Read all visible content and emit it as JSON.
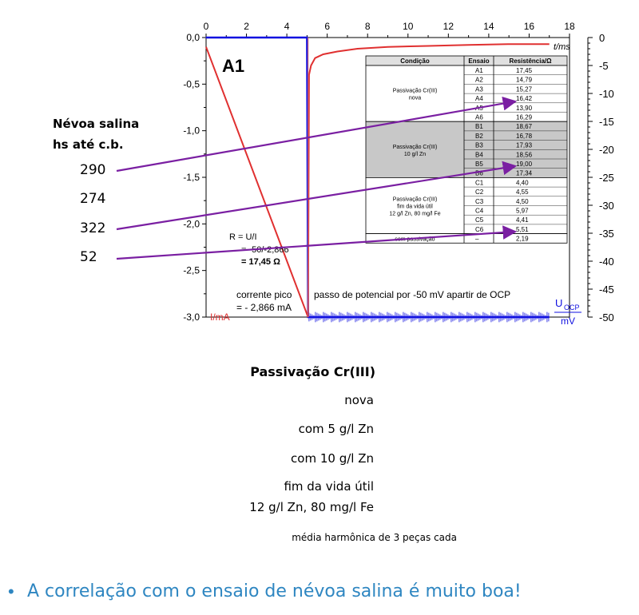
{
  "chart_data": {
    "type": "line",
    "panel_label": "A1",
    "x_axis": {
      "label": "t/ms",
      "ticks": [
        0,
        2,
        4,
        6,
        8,
        10,
        12,
        14,
        16,
        18
      ],
      "range": [
        0,
        18
      ]
    },
    "y_left": {
      "label": "I/mA",
      "ticks": [
        "0,0",
        "-0,5",
        "-1,0",
        "-1,5",
        "-2,0",
        "-2,5",
        "-3,0"
      ],
      "range": [
        -3.0,
        0.0
      ]
    },
    "y_right": {
      "label_main": "U",
      "label_sub": "OCP",
      "label_unit": "mV",
      "ticks": [
        "0",
        "-5",
        "-10",
        "-15",
        "-20",
        "-25",
        "-30",
        "-35",
        "-40",
        "-45",
        "-50"
      ],
      "range": [
        -50,
        0
      ]
    },
    "series": [
      {
        "color": "#e03030",
        "x": [
          0,
          5.05,
          5.1,
          5.2,
          5.4,
          5.8,
          6.5,
          7.5,
          9,
          11,
          13,
          15,
          17
        ],
        "y": [
          -0.1,
          -3.0,
          -0.4,
          -0.3,
          -0.22,
          -0.18,
          -0.15,
          -0.12,
          -0.1,
          -0.09,
          -0.08,
          -0.07,
          -0.07
        ]
      },
      {
        "color": "#1010e0",
        "x": [
          0,
          5.0,
          5.05,
          17
        ],
        "y": [
          0,
          0,
          -50,
          -50
        ]
      }
    ],
    "annotations": {
      "formula_line1": "R = U/I",
      "formula_line2": "= -50/-2,866",
      "formula_line3": "= 17,45 Ω",
      "peak_line1": "corrente pico",
      "peak_line2": "= - 2,866 mA",
      "step_text": "passo de potencial por -50 mV apartir de OCP"
    },
    "table": {
      "headers": [
        "Condição",
        "Ensaio",
        "Resistência/Ω"
      ],
      "groups": [
        {
          "condition": [
            "Passivação Cr(III)",
            "nova"
          ],
          "shaded": false,
          "rows": [
            [
              "A1",
              "17,45"
            ],
            [
              "A2",
              "14,79"
            ],
            [
              "A3",
              "15,27"
            ],
            [
              "A4",
              "16,42"
            ],
            [
              "A5",
              "13,90"
            ],
            [
              "A6",
              "16,29"
            ]
          ]
        },
        {
          "condition": [
            "Passivação Cr(III)",
            "10 g/l Zn"
          ],
          "shaded": true,
          "rows": [
            [
              "B1",
              "18,67"
            ],
            [
              "B2",
              "16,78"
            ],
            [
              "B3",
              "17,93"
            ],
            [
              "B4",
              "18,56"
            ],
            [
              "B5",
              "19,00"
            ],
            [
              "B6",
              "17,34"
            ]
          ]
        },
        {
          "condition": [
            "Passivação Cr(III)",
            "fim da vida útil",
            "12 g/l Zn, 80 mg/l Fe"
          ],
          "shaded": false,
          "rows": [
            [
              "C1",
              "4,40"
            ],
            [
              "C2",
              "4,55"
            ],
            [
              "C3",
              "4,50"
            ],
            [
              "C4",
              "5,97"
            ],
            [
              "C5",
              "4,41"
            ],
            [
              "C6",
              "5,51"
            ]
          ]
        },
        {
          "condition": [
            "sem passivação"
          ],
          "shaded": false,
          "rows": [
            [
              "–",
              "2,19"
            ]
          ]
        }
      ]
    }
  },
  "salt_spray": {
    "title_line1": "Névoa salina",
    "title_line2": "hs até c.b.",
    "values": [
      "290",
      "274",
      "322",
      "52"
    ],
    "arrow_color": "#7a1fa2"
  },
  "legend": {
    "title": "Passivação Cr(III)",
    "items": [
      "nova",
      "com 5 g/l Zn",
      "com 10 g/l Zn",
      "fim da vida útil",
      "12 g/l Zn, 80 mg/l Fe"
    ],
    "note": "média harmônica de 3 peças cada"
  },
  "bullet": {
    "text": "A correlação com o ensaio de névoa salina é muito boa!",
    "color": "#2e86c1"
  }
}
